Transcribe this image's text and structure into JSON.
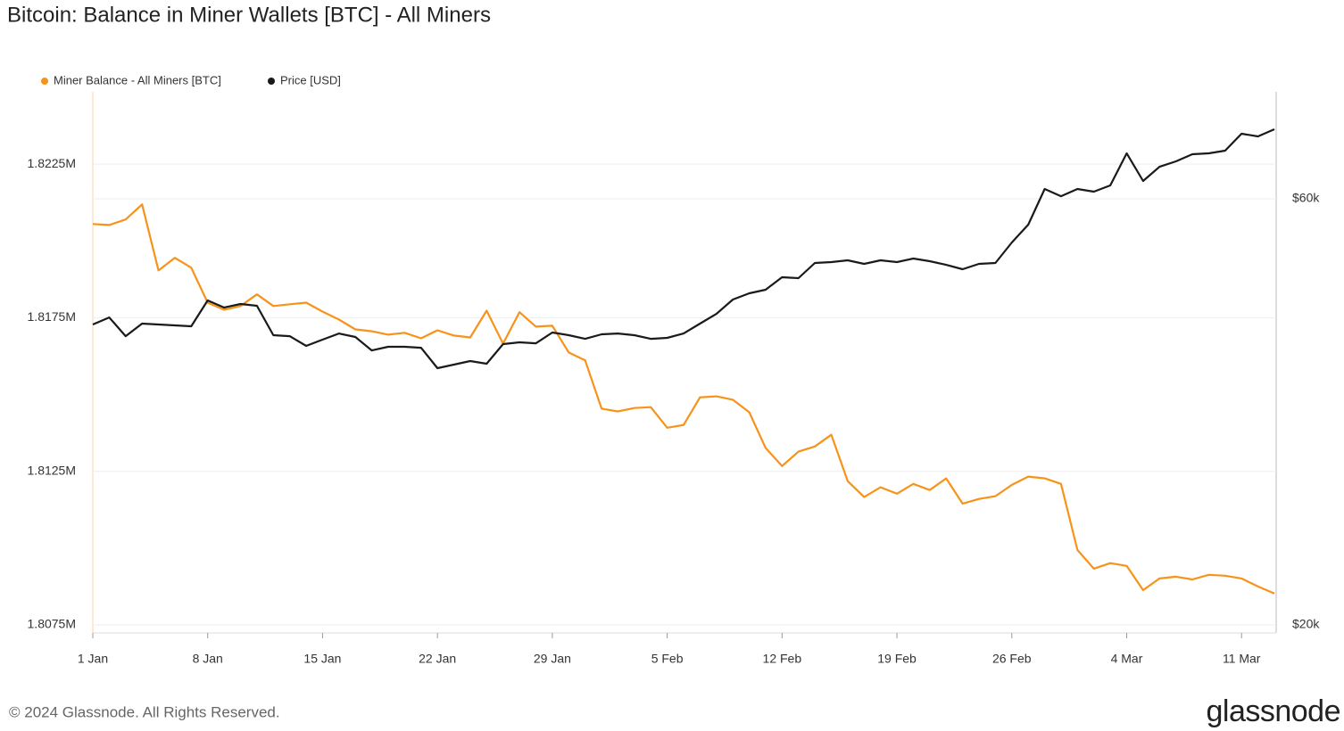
{
  "chart_data": {
    "type": "line",
    "title": "Bitcoin: Balance in Miner Wallets [BTC] - All Miners",
    "footer": "© 2024 Glassnode. All Rights Reserved.",
    "brand": "glassnode",
    "categories": [
      "1 Jan",
      null,
      null,
      null,
      null,
      null,
      null,
      "8 Jan",
      null,
      null,
      null,
      null,
      null,
      null,
      "15 Jan",
      null,
      null,
      null,
      null,
      null,
      null,
      "22 Jan",
      null,
      null,
      null,
      null,
      null,
      null,
      "29 Jan",
      null,
      null,
      null,
      null,
      null,
      null,
      "5 Feb",
      null,
      null,
      null,
      null,
      null,
      null,
      "12 Feb",
      null,
      null,
      null,
      null,
      null,
      null,
      "19 Feb",
      null,
      null,
      null,
      null,
      null,
      null,
      "26 Feb",
      null,
      null,
      null,
      null,
      null,
      null,
      "4 Mar",
      null,
      null,
      null,
      null,
      null,
      null,
      "11 Mar",
      null,
      null
    ],
    "series": [
      {
        "name": "Miner Balance - All Miners [BTC]",
        "color": "#f7931a",
        "values": [
          1820550,
          1820520,
          1820700,
          1821190,
          1819040,
          1819450,
          1819130,
          1817990,
          1817760,
          1817880,
          1818260,
          1817880,
          1817940,
          1817990,
          1817700,
          1817440,
          1817120,
          1817060,
          1816950,
          1817010,
          1816830,
          1817090,
          1816920,
          1816860,
          1817730,
          1816660,
          1817680,
          1817210,
          1817240,
          1816370,
          1816110,
          1814540,
          1814450,
          1814560,
          1814590,
          1813920,
          1814010,
          1814910,
          1814940,
          1814830,
          1814420,
          1813260,
          1812670,
          1813140,
          1813310,
          1813690,
          1812180,
          1811660,
          1811980,
          1811770,
          1812090,
          1811890,
          1812270,
          1811450,
          1811600,
          1811690,
          1812060,
          1812330,
          1812270,
          1812090,
          1809940,
          1809330,
          1809510,
          1809420,
          1808630,
          1809010,
          1809070,
          1808980,
          1809130,
          1809100,
          1809010,
          1808750,
          1808520
        ]
      },
      {
        "name": "Price [USD]",
        "color": "#1a1a1a",
        "axis": "y2",
        "values": [
          43390,
          44190,
          42110,
          43490,
          43390,
          43290,
          43190,
          46170,
          45330,
          45750,
          45540,
          42210,
          42110,
          41060,
          41730,
          42400,
          42020,
          40590,
          40970,
          40970,
          40870,
          38770,
          39130,
          39490,
          39220,
          41250,
          41440,
          41340,
          42500,
          42210,
          41820,
          42310,
          42400,
          42210,
          41820,
          41920,
          42400,
          43490,
          44600,
          46280,
          47030,
          47460,
          49010,
          48900,
          50850,
          50970,
          51200,
          50730,
          51200,
          50970,
          51440,
          51080,
          50610,
          50040,
          50730,
          50850,
          53610,
          56130,
          61540,
          60410,
          61540,
          61120,
          62110,
          67460,
          62820,
          65170,
          66080,
          67310,
          67460,
          67930,
          70960,
          70480,
          71790
        ]
      }
    ],
    "ylim": [
      1807238,
      1824855
    ],
    "yticks": [
      {
        "value": 1807500,
        "label": "1.8075M"
      },
      {
        "value": 1812500,
        "label": "1.8125M"
      },
      {
        "value": 1817500,
        "label": "1.8175M"
      },
      {
        "value": 1822500,
        "label": "1.8225M"
      }
    ],
    "y2lim": [
      19590,
      79060
    ],
    "y2ticks": [
      {
        "value": 20000,
        "label": "$20k"
      },
      {
        "value": 60000,
        "label": "$60k"
      }
    ],
    "y2scale": "log",
    "grid": true,
    "legend": "top-left"
  }
}
